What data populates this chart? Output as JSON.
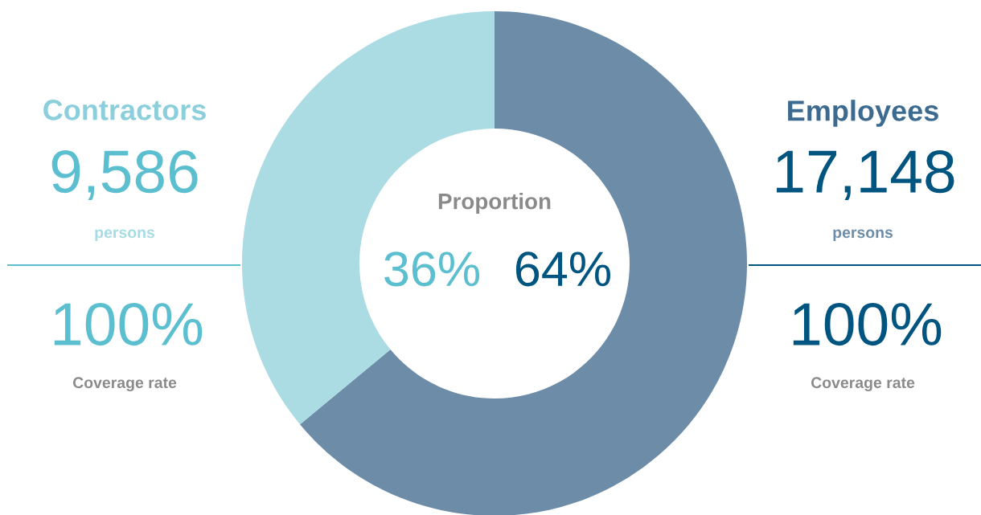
{
  "chart_data": {
    "type": "donut",
    "categories": [
      "Employees",
      "Contractors"
    ],
    "values": [
      64,
      36
    ],
    "value_labels": [
      "64%",
      "36%"
    ],
    "colors": [
      "#6d8ca8",
      "#abdbe3"
    ],
    "annotations": [
      "9,586",
      "persons",
      "100%",
      "Coverage rate",
      "17,148",
      "persons",
      "100%",
      "Coverage rate",
      "Proportion"
    ]
  }
}
